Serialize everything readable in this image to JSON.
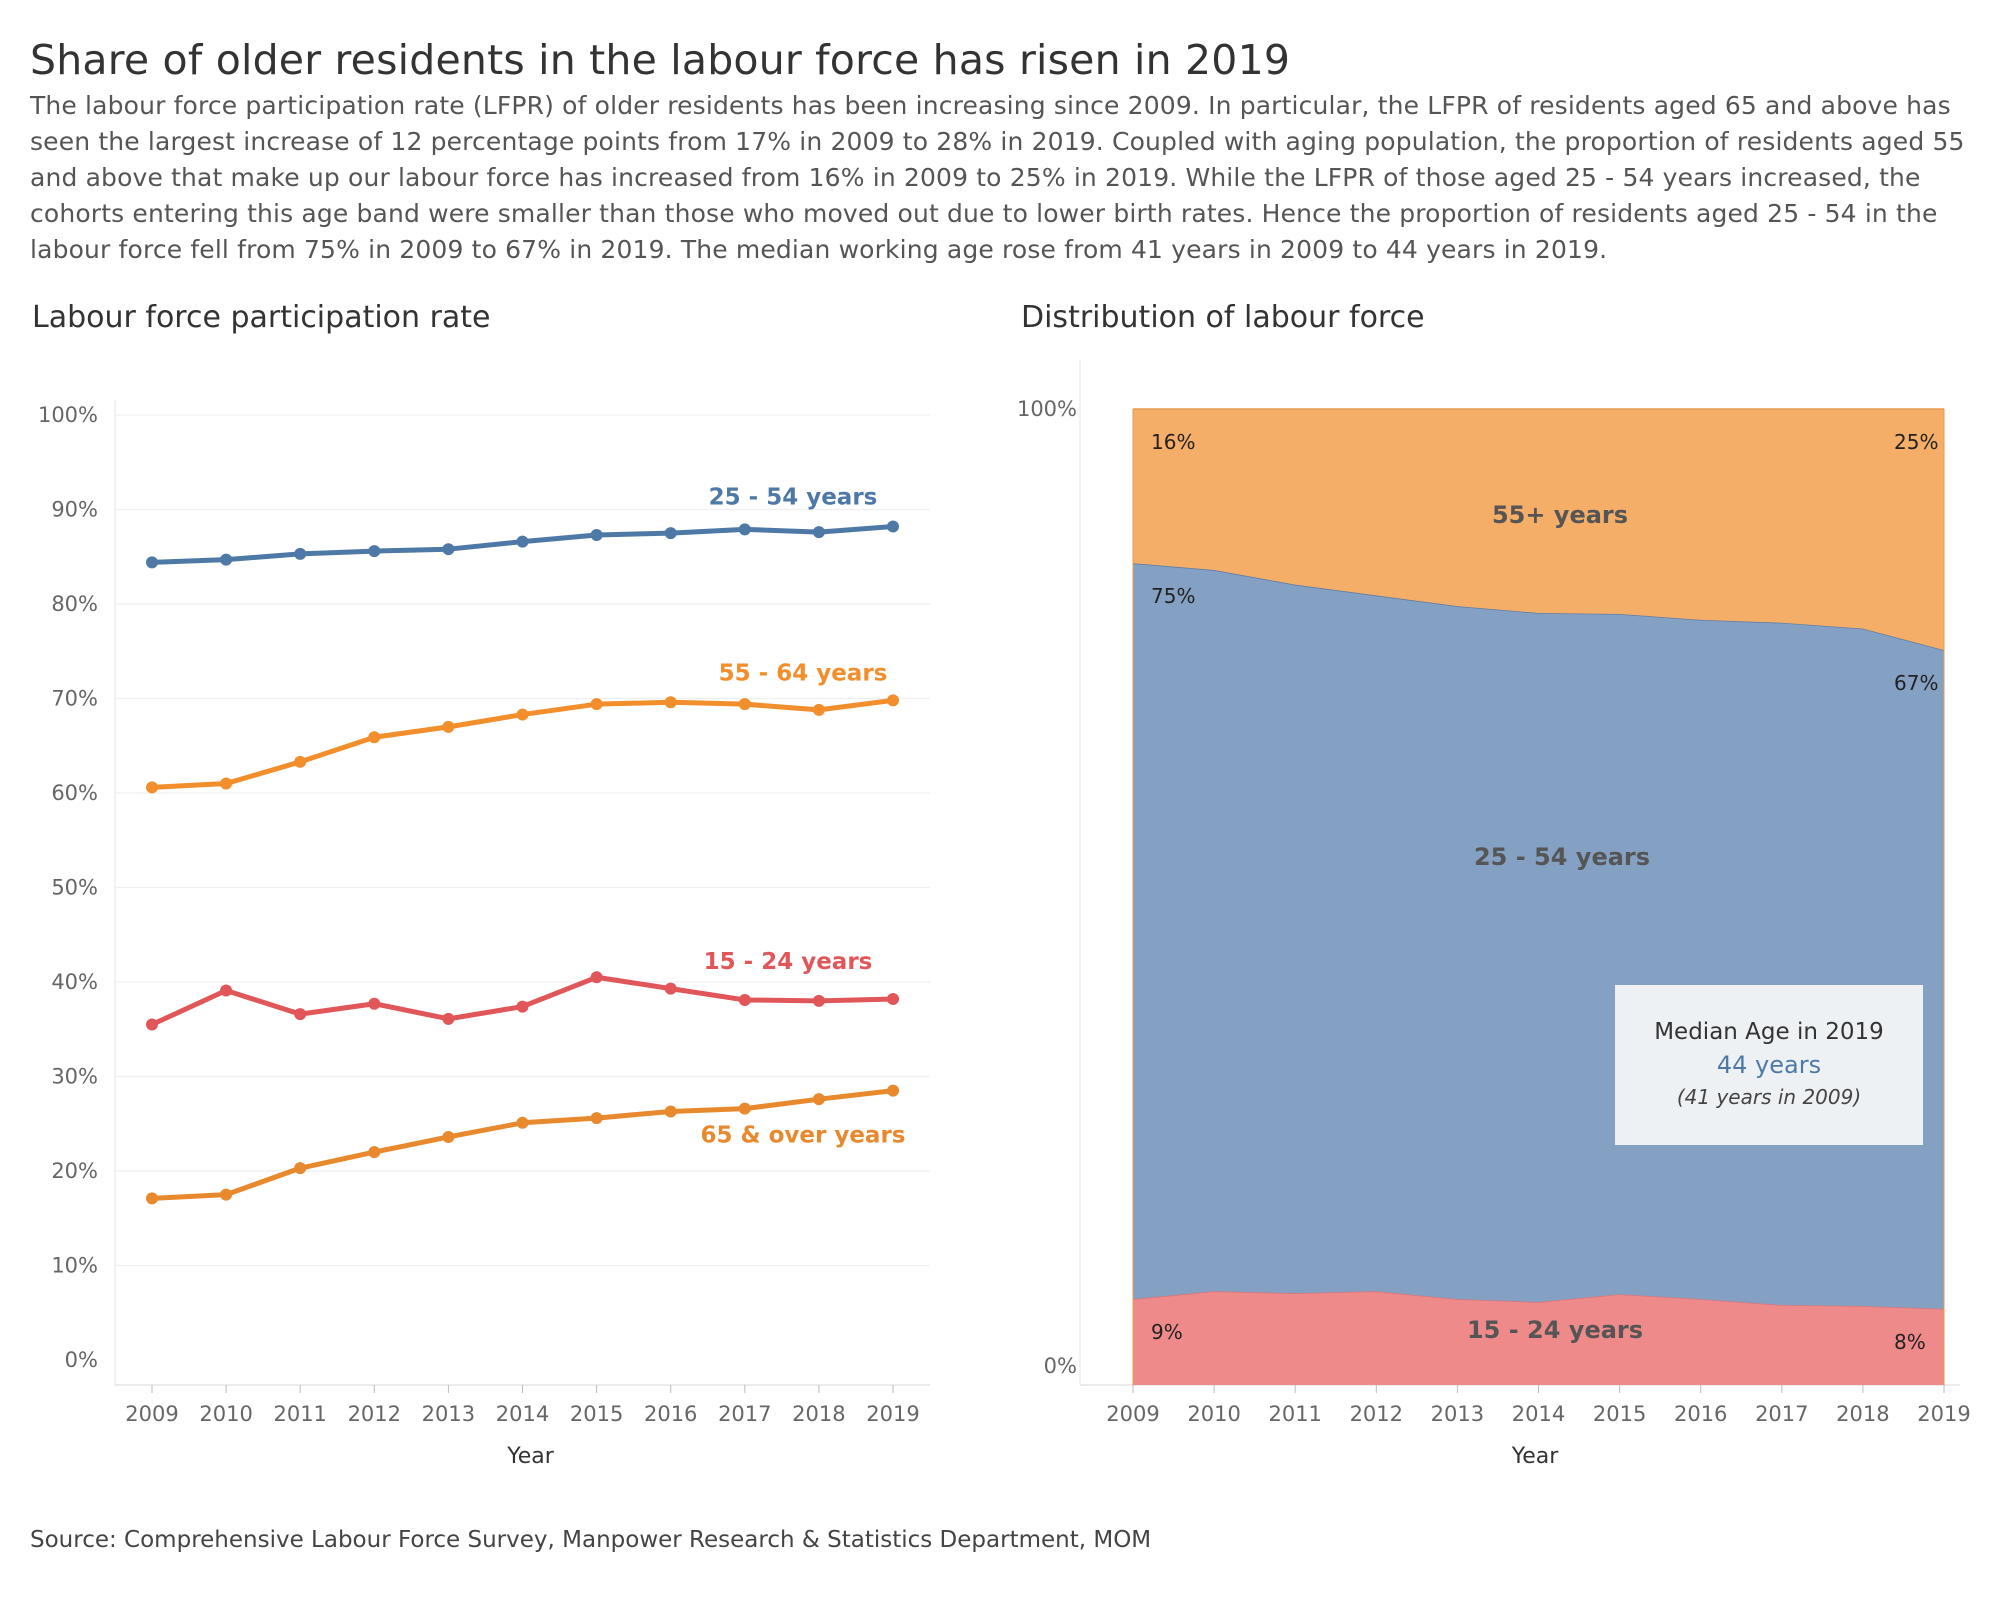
{
  "title": "Share of older residents in the labour force has risen in 2019",
  "subtitle": "The labour force participation rate (LFPR) of older residents has been increasing since 2009. In particular, the LFPR of residents aged 65 and above has seen the largest increase of 12 percentage points from 17% in 2009 to 28% in 2019. Coupled with aging population, the proportion of residents aged 55 and above that make up our labour force has increased from 16% in 2009 to 25% in 2019. While the LFPR of those aged 25 - 54 years increased, the cohorts entering this age band were smaller than those who moved out due to lower birth rates. Hence the proportion of residents aged 25 - 54 in the labour force fell from 75% in 2009 to 67% in 2019. The median working age rose from 41 years in 2009 to 44 years in 2019.",
  "source": "Source: Comprehensive Labour Force Survey, Manpower Research & Statistics Department, MOM",
  "median_box": {
    "title": "Median Age in 2019",
    "value": "44 years",
    "note": "(41 years in 2009)"
  },
  "chart_data": [
    {
      "type": "line",
      "title": "Labour force participation rate",
      "xlabel": "Year",
      "ylabel": "",
      "ylim": [
        0,
        100
      ],
      "grid": true,
      "y_ticks": [
        "0%",
        "10%",
        "20%",
        "30%",
        "40%",
        "50%",
        "60%",
        "70%",
        "80%",
        "90%",
        "100%"
      ],
      "x": [
        "2009",
        "2010",
        "2011",
        "2012",
        "2013",
        "2014",
        "2015",
        "2016",
        "2017",
        "2018",
        "2019"
      ],
      "series": [
        {
          "name": "25 - 54 years",
          "color": "#4e79a7",
          "values": [
            84.4,
            84.7,
            85.3,
            85.6,
            85.8,
            86.6,
            87.3,
            87.5,
            87.9,
            87.6,
            88.2
          ]
        },
        {
          "name": "55 - 64 years",
          "color": "#f28e2b",
          "values": [
            60.6,
            61.0,
            63.3,
            65.9,
            67.0,
            68.3,
            69.4,
            69.6,
            69.4,
            68.8,
            69.8
          ]
        },
        {
          "name": "15 - 24 years",
          "color": "#e15759",
          "values": [
            35.5,
            39.1,
            36.6,
            37.7,
            36.1,
            37.4,
            40.5,
            39.3,
            38.1,
            38.0,
            38.2
          ]
        },
        {
          "name": "65 & over years",
          "color": "#e8892e",
          "values": [
            17.1,
            17.5,
            20.3,
            22.0,
            23.6,
            25.1,
            25.6,
            26.3,
            26.6,
            27.6,
            28.5
          ]
        }
      ]
    },
    {
      "type": "area",
      "title": "Distribution of labour force",
      "xlabel": "Year",
      "ylabel": "",
      "ylim": [
        0,
        100
      ],
      "y_ticks": [
        "0%",
        "100%"
      ],
      "x": [
        "2009",
        "2010",
        "2011",
        "2012",
        "2013",
        "2014",
        "2015",
        "2016",
        "2017",
        "2018",
        "2019"
      ],
      "stacked": true,
      "series": [
        {
          "name": "15 - 24 years",
          "color": "#ee8a8a",
          "values": [
            8.8,
            9.6,
            9.4,
            9.6,
            8.8,
            8.5,
            9.3,
            8.8,
            8.2,
            8.1,
            7.8
          ]
        },
        {
          "name": "25 - 54 years",
          "color": "#84a1c4",
          "values": [
            75.4,
            73.9,
            72.6,
            71.3,
            71.0,
            70.6,
            69.7,
            69.6,
            69.9,
            69.4,
            67.5
          ]
        },
        {
          "name": "55+ years",
          "color": "#f5ae68",
          "values": [
            15.8,
            16.5,
            18.0,
            19.1,
            20.2,
            20.9,
            21.0,
            21.6,
            21.9,
            22.5,
            24.7
          ]
        }
      ],
      "point_labels": {
        "15 - 24 years": {
          "first": "9%",
          "last": "8%"
        },
        "25 - 54 years": {
          "first": "75%",
          "last": "67%"
        },
        "55+ years": {
          "first": "16%",
          "last": "25%"
        }
      }
    }
  ]
}
